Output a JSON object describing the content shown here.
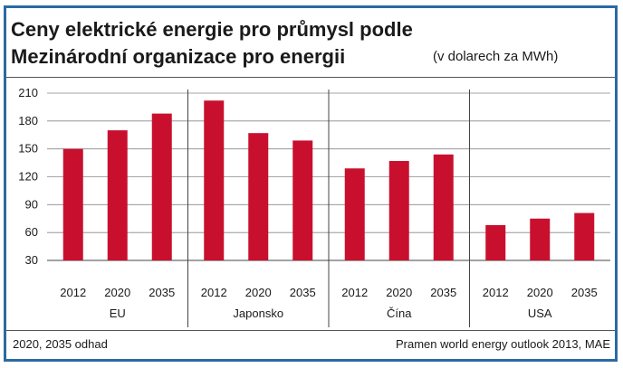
{
  "chart_data": {
    "type": "bar",
    "title": "Ceny elektrické energie pro průmysl podle Mezinárodní organizace pro energii",
    "title_lines": [
      "Ceny elektrické energie pro průmysl podle",
      "Mezinárodní organizace pro energii"
    ],
    "subtitle": "(v dolarech za MWh)",
    "ylim": [
      30,
      210
    ],
    "yticks": [
      30,
      60,
      90,
      120,
      150,
      180,
      210
    ],
    "grid": true,
    "colors": {
      "bar": "#c8102e",
      "frame": "#2a6aa3",
      "grid": "#888888"
    },
    "groups": [
      {
        "name": "EU",
        "categories": [
          "2012",
          "2020",
          "2035"
        ],
        "values": [
          150,
          170,
          188
        ]
      },
      {
        "name": "Japonsko",
        "categories": [
          "2012",
          "2020",
          "2035"
        ],
        "values": [
          202,
          167,
          159
        ]
      },
      {
        "name": "Čína",
        "categories": [
          "2012",
          "2020",
          "2035"
        ],
        "values": [
          129,
          137,
          144
        ]
      },
      {
        "name": "USA",
        "categories": [
          "2012",
          "2020",
          "2035"
        ],
        "values": [
          68,
          75,
          81
        ]
      }
    ]
  },
  "footer": {
    "note": "2020, 2035 odhad",
    "source": "Pramen world energy outlook 2013, MAE"
  }
}
